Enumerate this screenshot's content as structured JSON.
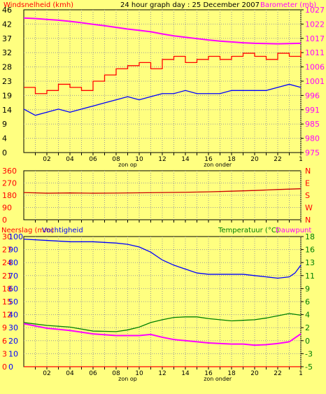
{
  "chart_data": [
    {
      "type": "line",
      "title": "24 hour graph day : 25 December 2007",
      "ylabel_left": "Windsnelheid (kmh)",
      "ylabel_right": "Barometer (mb)",
      "x_ticks": [
        "02",
        "04",
        "06",
        "08",
        "10",
        "12",
        "14",
        "16",
        "18",
        "20",
        "22",
        "1"
      ],
      "x_annotations": [
        {
          "at": "09",
          "label": "zon op"
        },
        {
          "at": "16.8",
          "label": "zon onder"
        }
      ],
      "y_left_ticks": [
        "0",
        "4",
        "9",
        "14",
        "19",
        "23",
        "28",
        "32",
        "37",
        "42",
        "46"
      ],
      "y_left_range": [
        0,
        46
      ],
      "y_right_ticks": [
        "975",
        "980",
        "985",
        "991",
        "996",
        "1001",
        "1006",
        "1011",
        "1017",
        "1022",
        "1027"
      ],
      "y_right_range": [
        975,
        1027
      ],
      "series": [
        {
          "color": "#ff00ff",
          "axis": "right",
          "x": [
            0,
            1,
            2,
            3,
            4,
            5,
            6,
            7,
            8,
            9,
            10,
            11,
            12,
            13,
            14,
            15,
            16,
            17,
            18,
            19,
            20,
            21,
            22,
            23,
            24
          ],
          "values": [
            1024,
            1023.8,
            1023.5,
            1023.2,
            1022.8,
            1022.3,
            1021.7,
            1021.2,
            1020.6,
            1020.0,
            1019.5,
            1019.0,
            1018.2,
            1017.5,
            1017.0,
            1016.5,
            1016.0,
            1015.6,
            1015.3,
            1015.0,
            1014.8,
            1014.7,
            1014.6,
            1014.7,
            1014.8
          ]
        },
        {
          "color": "#ff0000",
          "axis": "left",
          "x": [
            0,
            1,
            2,
            3,
            4,
            5,
            6,
            7,
            8,
            9,
            10,
            11,
            12,
            13,
            14,
            15,
            16,
            17,
            18,
            19,
            20,
            21,
            22,
            23,
            24
          ],
          "values": [
            21,
            19,
            20,
            22,
            21,
            20,
            23,
            25,
            27,
            28,
            29,
            27,
            30,
            31,
            29,
            30,
            31,
            30,
            31,
            32,
            31,
            30,
            32,
            31,
            33
          ]
        },
        {
          "color": "#0000ff",
          "axis": "left",
          "x": [
            0,
            1,
            2,
            3,
            4,
            5,
            6,
            7,
            8,
            9,
            10,
            11,
            12,
            13,
            14,
            15,
            16,
            17,
            18,
            19,
            20,
            21,
            22,
            23,
            24
          ],
          "values": [
            14,
            12,
            13,
            14,
            13,
            14,
            15,
            16,
            17,
            18,
            17,
            18,
            19,
            19,
            20,
            19,
            19,
            19,
            20,
            20,
            20,
            20,
            21,
            22,
            21
          ]
        }
      ]
    },
    {
      "type": "line",
      "y_left_ticks": [
        "0",
        "90",
        "180",
        "270",
        "360"
      ],
      "y_left_range": [
        0,
        360
      ],
      "y_right_ticks": [
        "N",
        "W",
        "S",
        "E",
        "N"
      ],
      "series": [
        {
          "color": "#cc0000",
          "x": [
            0,
            2,
            4,
            6,
            8,
            10,
            12,
            14,
            16,
            18,
            20,
            22,
            24
          ],
          "values": [
            200,
            195,
            197,
            195,
            196,
            198,
            200,
            202,
            205,
            210,
            215,
            222,
            228
          ]
        }
      ]
    },
    {
      "type": "line",
      "ylabel_left": "Neerslag (mm)",
      "ylabel_left2": "Vochtigheid",
      "ylabel_right": "Temperatuur (°C)",
      "ylabel_right2": "Dauwpunt",
      "x_ticks": [
        "02",
        "04",
        "06",
        "08",
        "10",
        "12",
        "14",
        "16",
        "18",
        "20",
        "22",
        "1"
      ],
      "x_annotations": [
        {
          "at": "09",
          "label": "zon op"
        },
        {
          "at": "16.8",
          "label": "zon onder"
        }
      ],
      "y_left_ticks": [
        "0",
        "10",
        "20",
        "30",
        "40",
        "50",
        "60",
        "70",
        "80",
        "90",
        "100"
      ],
      "y_left_range": [
        0,
        100
      ],
      "y_left2_ticks": [
        "0",
        "3",
        "6",
        "9",
        "12",
        "15",
        "18",
        "21",
        "24",
        "27",
        "30"
      ],
      "y_left2_range": [
        0,
        30
      ],
      "y_right_ticks": [
        "-5",
        "-3",
        "0",
        "2",
        "4",
        "6",
        "9",
        "11",
        "13",
        "16",
        "18"
      ],
      "y_right_range": [
        -5,
        18
      ],
      "series": [
        {
          "color": "#ff0000",
          "axis": "left",
          "x": [
            0,
            24
          ],
          "values": [
            0,
            0
          ]
        },
        {
          "color": "#0000ff",
          "axis": "left",
          "x": [
            0,
            2,
            4,
            6,
            8,
            9,
            10,
            11,
            12,
            13,
            14,
            15,
            16,
            17,
            18,
            19,
            20,
            21,
            22,
            23,
            23.5,
            24
          ],
          "values": [
            98,
            97,
            96,
            96,
            95,
            94,
            92,
            88,
            82,
            78,
            75,
            72,
            71,
            71,
            71,
            71,
            70,
            69,
            68,
            69,
            72,
            78
          ]
        },
        {
          "color": "#008000",
          "axis": "right",
          "x": [
            0,
            2,
            4,
            6,
            8,
            9,
            10,
            11,
            12,
            13,
            14,
            15,
            16,
            17,
            18,
            19,
            20,
            21,
            22,
            23,
            24
          ],
          "values": [
            2.8,
            2.3,
            2.0,
            1.3,
            1.2,
            1.5,
            2.0,
            2.8,
            3.3,
            3.7,
            3.8,
            3.8,
            3.5,
            3.3,
            3.1,
            3.2,
            3.3,
            3.6,
            4.0,
            4.4,
            4.1
          ]
        },
        {
          "color": "#ff00ff",
          "axis": "right",
          "x": [
            0,
            2,
            4,
            6,
            8,
            9,
            10,
            11,
            12,
            13,
            14,
            15,
            16,
            17,
            18,
            19,
            20,
            21,
            22,
            23,
            24
          ],
          "values": [
            2.6,
            1.8,
            1.4,
            0.8,
            0.5,
            0.5,
            0.5,
            0.7,
            0.2,
            -0.2,
            -0.4,
            -0.6,
            -0.8,
            -0.9,
            -1.0,
            -1.0,
            -1.2,
            -1.1,
            -0.9,
            -0.6,
            0.8
          ]
        }
      ]
    }
  ]
}
